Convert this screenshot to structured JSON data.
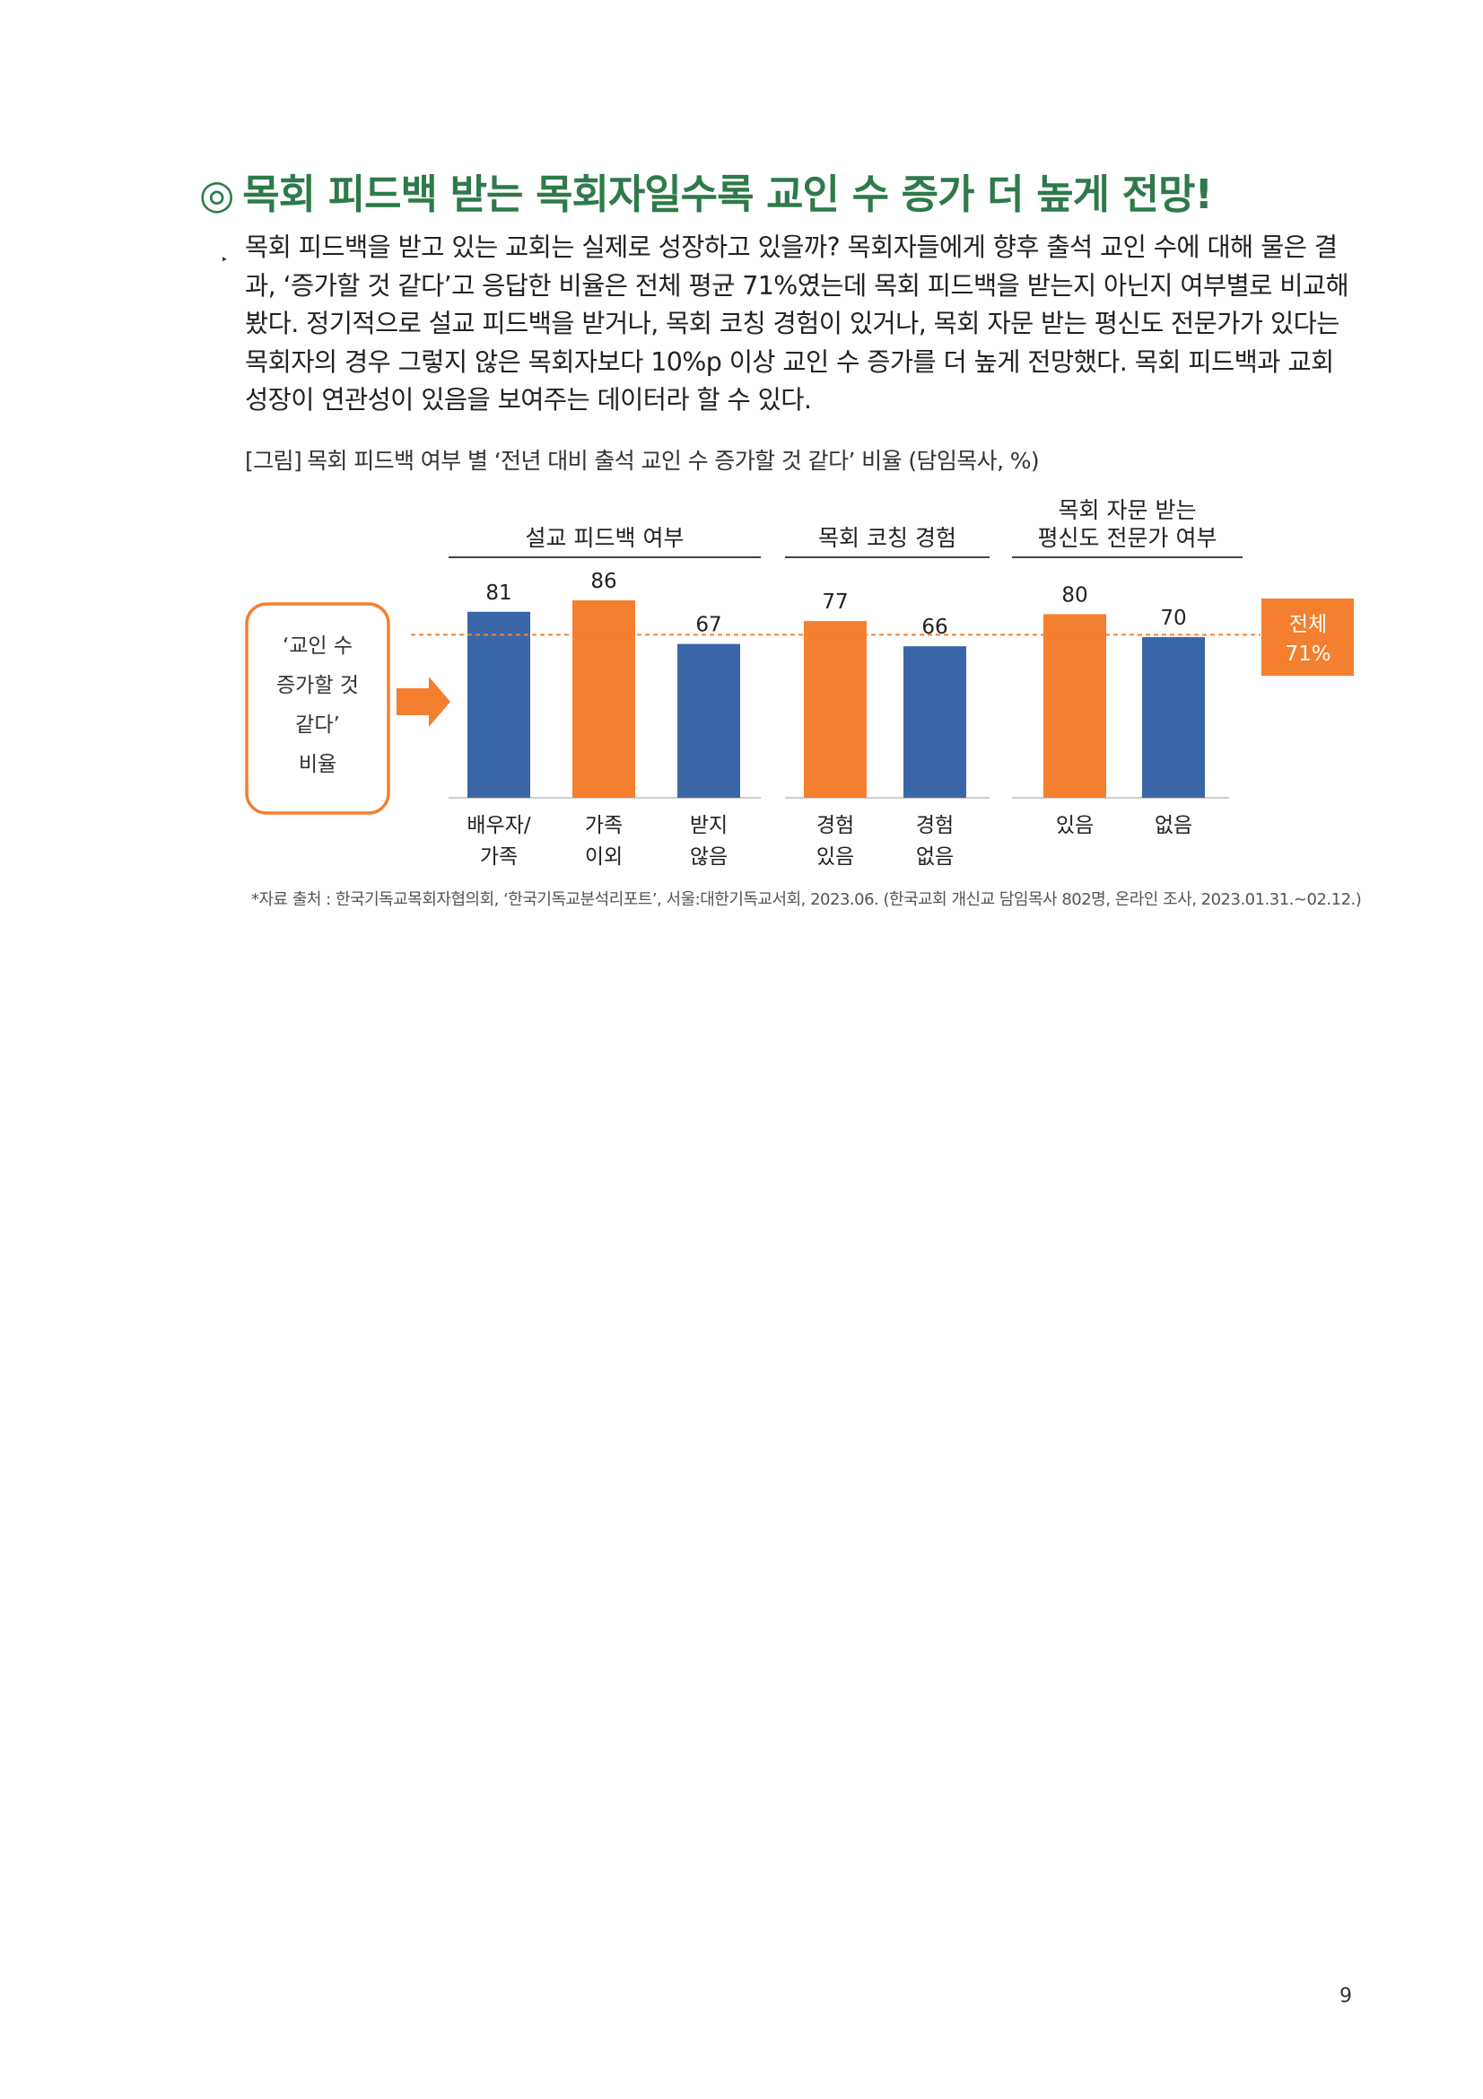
{
  "heading": {
    "mark": "◎",
    "text": "목회 피드백 받는 목회자일수록 교인 수 증가 더 높게 전망!"
  },
  "bullet_symbol": "‣",
  "paragraph": "목회 피드백을 받고 있는 교회는 실제로 성장하고 있을까? 목회자들에게 향후 출석 교인 수에 대해 물은 결과, ‘증가할 것 같다’고 응답한 비율은 전체 평균 71%였는데 목회 피드백을 받는지 아닌지 여부별로 비교해봤다. 정기적으로 설교 피드백을 받거나, 목회 코칭 경험이 있거나, 목회 자문 받는 평신도 전문가가 있다는 목회자의 경우 그렇지 않은 목회자보다 10%p 이상 교인 수 증가를 더 높게 전망했다. 목회 피드백과 교회 성장이 연관성이 있음을 보여주는 데이터라 할 수 있다.",
  "caption": {
    "label": "[그림]",
    "text": "목회 피드백 여부 별 ‘전년 대비 출석 교인 수 증가할 것 같다’ 비율 (담임목사, %)"
  },
  "chart_data": {
    "type": "bar",
    "ylabel_box": [
      "‘교인 수",
      "증가할 것",
      "같다’",
      "비율"
    ],
    "groups": [
      {
        "title": [
          "설교 피드백 여부"
        ]
      },
      {
        "title": [
          "목회 코칭 경험"
        ]
      },
      {
        "title": [
          "목회 자문 받는",
          "평신도 전문가 여부"
        ]
      }
    ],
    "bars": [
      {
        "group": 0,
        "label": [
          "배우자/",
          "가족"
        ],
        "value": 81,
        "color": "#3a66a7"
      },
      {
        "group": 0,
        "label": [
          "가족",
          "이외"
        ],
        "value": 86,
        "color": "#f47f2f"
      },
      {
        "group": 0,
        "label": [
          "받지",
          "않음"
        ],
        "value": 67,
        "color": "#3a66a7"
      },
      {
        "group": 1,
        "label": [
          "경험",
          "있음"
        ],
        "value": 77,
        "color": "#f47f2f"
      },
      {
        "group": 1,
        "label": [
          "경험",
          "없음"
        ],
        "value": 66,
        "color": "#3a66a7"
      },
      {
        "group": 2,
        "label": [
          "있음"
        ],
        "value": 80,
        "color": "#f47f2f"
      },
      {
        "group": 2,
        "label": [
          "없음"
        ],
        "value": 70,
        "color": "#3a66a7"
      }
    ],
    "reference": {
      "value": 71,
      "label": [
        "전체",
        "71%"
      ],
      "color": "#f47f2f"
    },
    "ylim": [
      0,
      86
    ],
    "colors": {
      "blue": "#3a66a7",
      "orange": "#f47f2f"
    }
  },
  "source": "*자료 출처 : 한국기독교목회자협의회, ‘한국기독교분석리포트’, 서울:대한기독교서회, 2023.06. (한국교회 개신교 담임목사 802명, 온라인 조사, 2023.01.31.~02.12.)",
  "page_number": "9"
}
